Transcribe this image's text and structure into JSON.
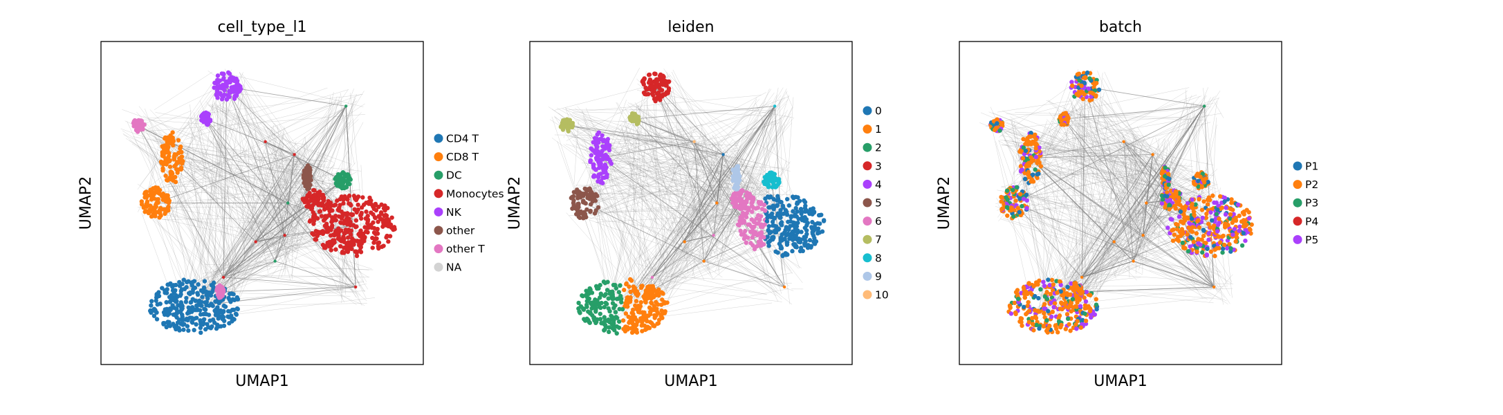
{
  "chart_data": [
    {
      "type": "scatter",
      "title": "cell_type_l1",
      "xlabel": "UMAP1",
      "ylabel": "UMAP2",
      "grid": false,
      "legend_position": "right",
      "legend": [
        {
          "label": "CD4 T",
          "color": "#1f77b4"
        },
        {
          "label": "CD8 T",
          "color": "#ff7f0e"
        },
        {
          "label": "DC",
          "color": "#279e68"
        },
        {
          "label": "Monocytes",
          "color": "#d62728"
        },
        {
          "label": "NK",
          "color": "#aa40fc"
        },
        {
          "label": "other",
          "color": "#8c564b"
        },
        {
          "label": "other T",
          "color": "#e377c2"
        },
        {
          "label": "NA",
          "color": "#d3d3d3"
        }
      ]
    },
    {
      "type": "scatter",
      "title": "leiden",
      "xlabel": "UMAP1",
      "ylabel": "UMAP2",
      "grid": false,
      "legend_position": "right",
      "legend": [
        {
          "label": "0",
          "color": "#1f77b4"
        },
        {
          "label": "1",
          "color": "#ff7f0e"
        },
        {
          "label": "2",
          "color": "#279e68"
        },
        {
          "label": "3",
          "color": "#d62728"
        },
        {
          "label": "4",
          "color": "#aa40fc"
        },
        {
          "label": "5",
          "color": "#8c564b"
        },
        {
          "label": "6",
          "color": "#e377c2"
        },
        {
          "label": "7",
          "color": "#b5bd61"
        },
        {
          "label": "8",
          "color": "#17becf"
        },
        {
          "label": "9",
          "color": "#aec7e8"
        },
        {
          "label": "10",
          "color": "#ffbb78"
        }
      ]
    },
    {
      "type": "scatter",
      "title": "batch",
      "xlabel": "UMAP1",
      "ylabel": "UMAP2",
      "grid": false,
      "legend_position": "right",
      "legend": [
        {
          "label": "P1",
          "color": "#1f77b4"
        },
        {
          "label": "P2",
          "color": "#ff7f0e"
        },
        {
          "label": "P3",
          "color": "#279e68"
        },
        {
          "label": "P4",
          "color": "#d62728"
        },
        {
          "label": "P5",
          "color": "#aa40fc"
        }
      ]
    }
  ],
  "colors": {
    "edges": "#808080",
    "frame": "#000000"
  }
}
